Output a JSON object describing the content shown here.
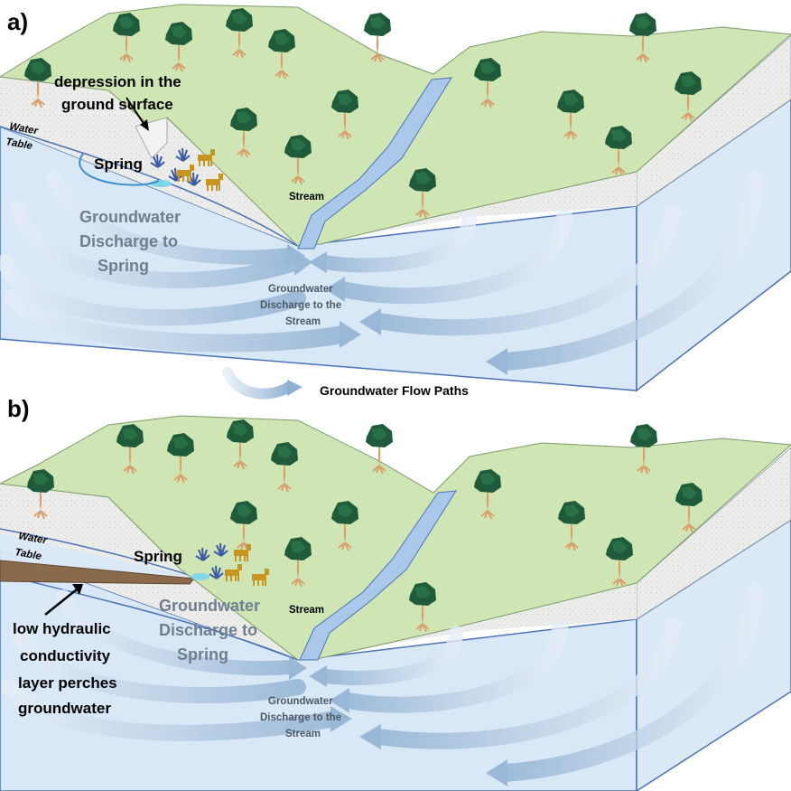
{
  "panel_a": {
    "letter": "a)",
    "depression_label_line1": "depression in the",
    "depression_label_line2": "ground  surface",
    "water_table_line1": "Water",
    "water_table_line2": "Table",
    "spring_label": "Spring",
    "gw_spring_line1": "Groundwater",
    "gw_spring_line2": "Discharge to",
    "gw_spring_line3": "Spring",
    "stream_label": "Stream",
    "gw_stream_line1": "Groundwater",
    "gw_stream_line2": "Discharge to the",
    "gw_stream_line3": "Stream"
  },
  "legend": {
    "flow_paths_label": "Groundwater Flow Paths"
  },
  "panel_b": {
    "letter": "b)",
    "water_table_line1": "Water",
    "water_table_line2": "Table",
    "spring_label": "Spring",
    "gw_spring_line1": "Groundwater",
    "gw_spring_line2": "Discharge to",
    "gw_spring_line3": "Spring",
    "stream_label": "Stream",
    "gw_stream_line1": "Groundwater",
    "gw_stream_line2": "Discharge to the",
    "gw_stream_line3": "Stream",
    "layer_line1": "low hydraulic",
    "layer_line2": "conductivity",
    "layer_line3": "layer perches",
    "layer_line4": "groundwater"
  },
  "colors": {
    "grass": "#cfe6b4",
    "soil": "#ebebe8",
    "water": "#d9e8f6",
    "stream": "#a9c8ea",
    "arrow": "#9db8d5",
    "tree": "#1f5a3a",
    "trunk": "#d9a06a",
    "animal": "#c8961e",
    "plant": "#3a5aa8",
    "layer": "#8b6a4b"
  }
}
